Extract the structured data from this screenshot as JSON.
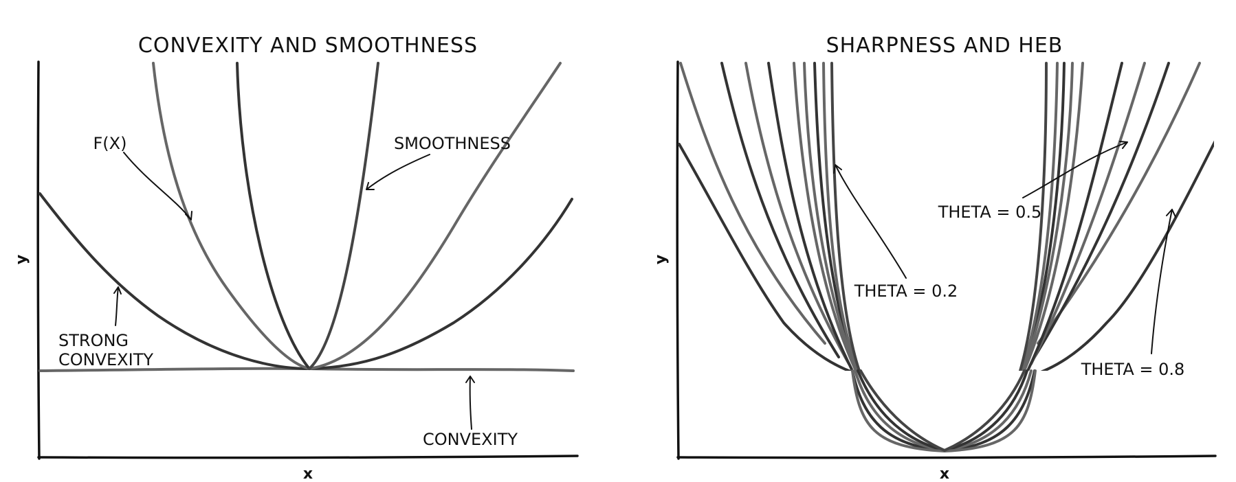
{
  "chart_data": [
    {
      "type": "line",
      "title": "Convexity and Smoothness",
      "xlabel": "x",
      "ylabel": "y",
      "annotations": [
        "f(x)",
        "Smoothness",
        "Strong convexity",
        "Convexity"
      ],
      "colors": {
        "light": "#666666",
        "dark": "#333333"
      }
    },
    {
      "type": "line",
      "title": "Sharpness and HEB",
      "xlabel": "x",
      "ylabel": "y",
      "annotations": [
        "theta = 0.2",
        "theta = 0.5",
        "theta = 0.8"
      ],
      "colors": {
        "light": "#666666",
        "dark": "#333333"
      }
    }
  ]
}
